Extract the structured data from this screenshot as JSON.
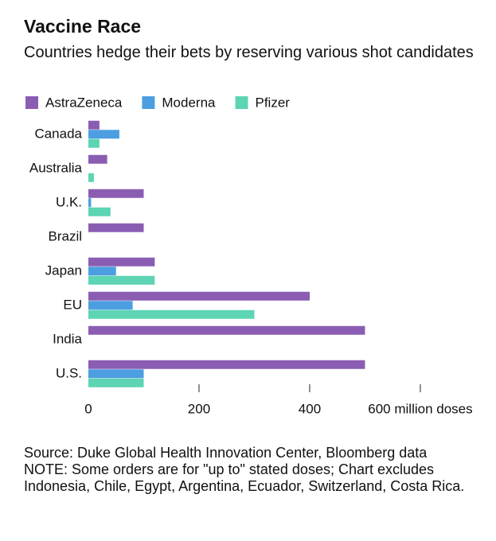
{
  "chart_data": {
    "type": "bar",
    "orientation": "horizontal",
    "title": "Vaccine Race",
    "subtitle": "Countries hedge their bets by reserving various shot candidates",
    "categories": [
      "Canada",
      "Australia",
      "U.K.",
      "Brazil",
      "Japan",
      "EU",
      "India",
      "U.S."
    ],
    "series": [
      {
        "name": "AstraZeneca",
        "color": "#8a5db3",
        "values": [
          20,
          34,
          100,
          100,
          120,
          400,
          500,
          500
        ]
      },
      {
        "name": "Moderna",
        "color": "#4c9ee0",
        "values": [
          56,
          null,
          5,
          null,
          50,
          80,
          null,
          100
        ]
      },
      {
        "name": "Pfizer",
        "color": "#5dd4b3",
        "values": [
          20,
          10,
          40,
          null,
          120,
          300,
          null,
          100
        ]
      }
    ],
    "xlim": [
      0,
      690
    ],
    "xticks": [
      0,
      200,
      400,
      {
        "value": 600,
        "label": "600 million doses"
      }
    ],
    "legend": "top-left",
    "source": "Source: Duke Global Health Innovation Center, Bloomberg data",
    "note": "NOTE: Some orders are for \"up to\" stated doses; Chart excludes Indonesia, Chile, Egypt, Argentina, Ecuador, Switzerland, Costa Rica."
  }
}
